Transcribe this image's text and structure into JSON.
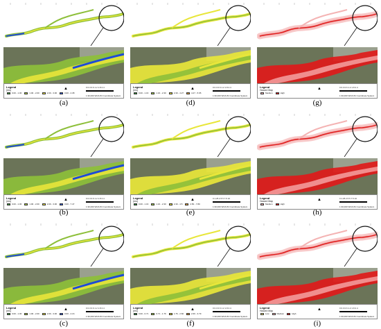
{
  "colors": {
    "river_green": "#8dbf3a",
    "river_dark": "#3c7d2a",
    "flood_yellow": "#e8e63a",
    "flood_red": "#e01a1a",
    "flood_blue": "#1e4bd6",
    "terrain": "#6b7458",
    "hazard_light_red": "#f4b3b3",
    "hazard_red": "#e01a1a"
  },
  "scale_text": "1:30,000",
  "crs_text": "WGS 84 Coordinate System",
  "panels": [
    {
      "caption": "(a)",
      "kind": "depth",
      "legend_title": "Legend",
      "legend_unit": "(ms)",
      "legend_items": [
        "0.00 - 1.00",
        "1.00 - 2.00",
        "2.00 - 3.00",
        "3.00 - 4.38"
      ],
      "scale_ticks": "0 0.3 0.6  1.2  1.8  2.4"
    },
    {
      "caption": "(d)",
      "kind": "velocity",
      "legend_title": "Legend",
      "legend_unit": "(ms)",
      "legend_items": [
        "0.00 - 1.16",
        "1.16 - 2.30",
        "2.30 - 4.27",
        "4.27 - 5.65"
      ],
      "scale_ticks": "0 0.3 0.6  1.2  1.8  2.4"
    },
    {
      "caption": "(g)",
      "kind": "hazard",
      "legend_title": "Legend",
      "legend_unit": "Hazard Map",
      "legend_items": [
        "Medium",
        "High"
      ],
      "scale_ticks": "0 0.3 0.6  1.2  1.8  2.4"
    },
    {
      "caption": "(b)",
      "kind": "depth",
      "legend_title": "Legend",
      "legend_unit": "(ms)",
      "legend_items": [
        "0.00 - 1.00",
        "1.00 - 2.00",
        "2.00 - 3.00",
        "3.00 - 7.47"
      ],
      "scale_ticks": "0 0.3 0.6  1.2  1.8  2.4"
    },
    {
      "caption": "(e)",
      "kind": "velocity",
      "legend_title": "Legend",
      "legend_unit": "(ms)",
      "legend_items": [
        "0.00 - 1.16",
        "1.16 - 2.30",
        "2.30 - 4.5",
        "4.50 - 7.80"
      ],
      "scale_ticks": "0 1.25 2.5  5   7.5  10"
    },
    {
      "caption": "(h)",
      "kind": "hazard",
      "legend_title": "Legend",
      "legend_unit": "Hazard Map",
      "legend_items": [
        "Medium",
        "High"
      ],
      "scale_ticks": "0 1.25 2.5  5   7.5  10"
    },
    {
      "caption": "(c)",
      "kind": "depth",
      "legend_title": "Legend",
      "legend_unit": "(ms)",
      "legend_items": [
        "0.00 - 1.00",
        "1.00 - 2.00",
        "2.00 - 3.00",
        "3.00 - 4.16"
      ],
      "scale_ticks": "0 0.3 0.6  1.2  1.8  2.4"
    },
    {
      "caption": "(f)",
      "kind": "velocity",
      "legend_title": "Legend",
      "legend_unit": "(ms)",
      "legend_items": [
        "0.00 - 0.71",
        "0.71 - 1.76",
        "1.76 - 2.66",
        "2.66 - 3.79"
      ],
      "scale_ticks": "0 0.3 0.6  1.2  1.8  2.4"
    },
    {
      "caption": "(i)",
      "kind": "hazard",
      "legend_title": "Legend",
      "legend_unit": "Hazard Map",
      "legend_items": [
        "Low",
        "Medium",
        "High"
      ],
      "scale_ticks": "0 0.3 0.6  1.2  1.8  2.4"
    }
  ]
}
